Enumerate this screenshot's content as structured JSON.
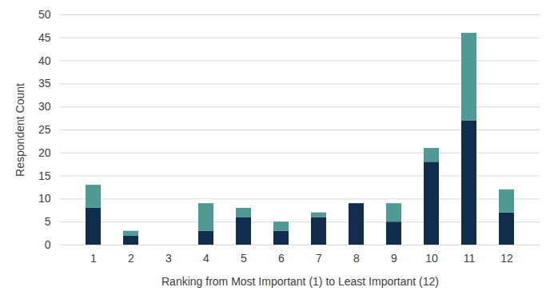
{
  "chart_data": {
    "type": "bar",
    "stacked": true,
    "grid": true,
    "x_label": "Ranking from Most Important (1) to Least Important (12)",
    "y_label": "Respondent Count",
    "categories": [
      "1",
      "2",
      "3",
      "4",
      "5",
      "6",
      "7",
      "8",
      "9",
      "10",
      "11",
      "12"
    ],
    "series": [
      {
        "color": "#112d4e",
        "values": [
          8,
          2,
          0,
          3,
          6,
          3,
          6,
          9,
          5,
          18,
          27,
          7
        ]
      },
      {
        "color": "#4f9a94",
        "values": [
          5,
          1,
          0,
          6,
          2,
          2,
          1,
          0,
          4,
          3,
          19,
          5
        ]
      }
    ],
    "ylim": [
      0,
      50
    ],
    "yticks": [
      0,
      5,
      10,
      15,
      20,
      25,
      30,
      35,
      40,
      45,
      50
    ]
  }
}
